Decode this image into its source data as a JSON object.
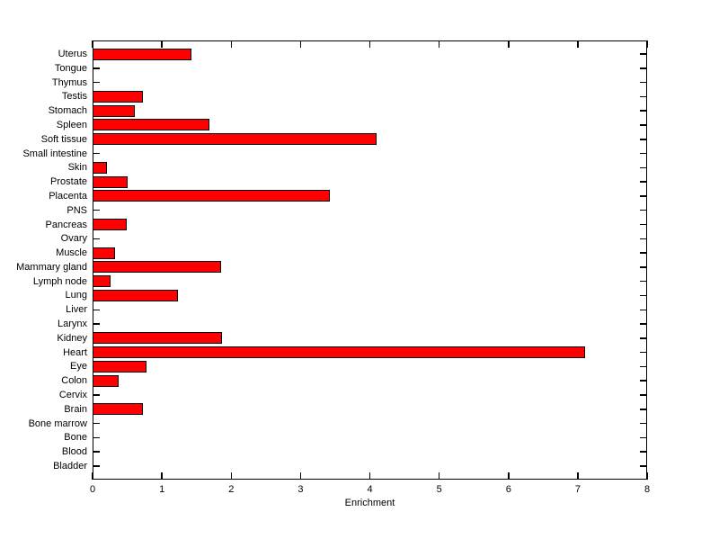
{
  "figure": {
    "background_color": "#ffffff",
    "axis_color": "#000000"
  },
  "chart_data": {
    "type": "bar",
    "orientation": "horizontal",
    "title": "",
    "xlabel": "Enrichment",
    "ylabel": "",
    "xlim": [
      0,
      8
    ],
    "xticks": [
      0,
      1,
      2,
      3,
      4,
      5,
      6,
      7,
      8
    ],
    "grid": false,
    "legend": null,
    "bar_color": "#ff0000",
    "bar_edge_color": "#000000",
    "categories": [
      "Uterus",
      "Tongue",
      "Thymus",
      "Testis",
      "Stomach",
      "Spleen",
      "Soft tissue",
      "Small intestine",
      "Skin",
      "Prostate",
      "Placenta",
      "PNS",
      "Pancreas",
      "Ovary",
      "Muscle",
      "Mammary gland",
      "Lymph node",
      "Lung",
      "Liver",
      "Larynx",
      "Kidney",
      "Heart",
      "Eye",
      "Colon",
      "Cervix",
      "Brain",
      "Bone marrow",
      "Bone",
      "Blood",
      "Bladder"
    ],
    "values": [
      1.42,
      0,
      0,
      0.72,
      0.61,
      1.68,
      4.1,
      0,
      0.21,
      0.5,
      3.42,
      0,
      0.49,
      0,
      0.33,
      1.85,
      0.26,
      1.23,
      0,
      0,
      1.87,
      7.1,
      0.78,
      0.37,
      0,
      0.72,
      0,
      0,
      0,
      0
    ]
  }
}
